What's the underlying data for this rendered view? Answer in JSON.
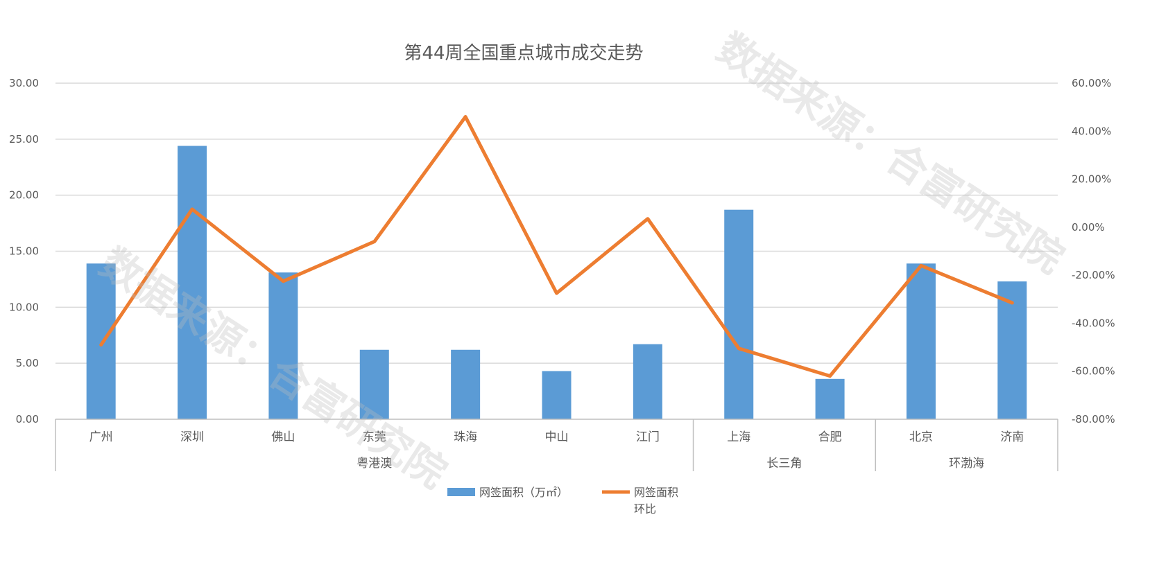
{
  "chart_data": {
    "type": "bar",
    "title": "第44周全国重点城市成交走势",
    "categories": [
      "广州",
      "深圳",
      "佛山",
      "东莞",
      "珠海",
      "中山",
      "江门",
      "上海",
      "合肥",
      "北京",
      "济南"
    ],
    "groups": [
      {
        "name": "粤港澳",
        "count": 7
      },
      {
        "name": "长三角",
        "count": 2
      },
      {
        "name": "环渤海",
        "count": 2
      }
    ],
    "series": [
      {
        "name": "网签面积（万㎡）",
        "type": "bar",
        "axis": "left",
        "color": "#5B9BD5",
        "values": [
          13.9,
          24.4,
          13.1,
          6.2,
          6.2,
          4.3,
          6.7,
          18.7,
          3.6,
          13.9,
          12.3
        ]
      },
      {
        "name": "网签面积环比",
        "type": "line",
        "axis": "right",
        "color": "#ED7D31",
        "values": [
          -49.0,
          7.5,
          -22.5,
          -6.0,
          46.0,
          -27.5,
          3.5,
          -50.5,
          -62.0,
          -16.0,
          -31.5
        ]
      }
    ],
    "y_left": {
      "min": 0,
      "max": 30,
      "step": 5,
      "ticks": [
        "0.00",
        "5.00",
        "10.00",
        "15.00",
        "20.00",
        "25.00",
        "30.00"
      ]
    },
    "y_right": {
      "min": -80,
      "max": 60,
      "step": 20,
      "ticks": [
        "-80.00%",
        "-60.00%",
        "-40.00%",
        "-20.00%",
        "0.00%",
        "20.00%",
        "40.00%",
        "60.00%"
      ]
    },
    "legend": {
      "position": "bottom",
      "bar_label": "网签面积（万㎡）",
      "line_label_1": "网签面积",
      "line_label_2": "环比"
    },
    "grid": true
  },
  "watermark": "数据来源：合富研究院",
  "colors": {
    "grid": "#D9D9D9",
    "axis": "#BFBFBF",
    "text": "#595959"
  }
}
